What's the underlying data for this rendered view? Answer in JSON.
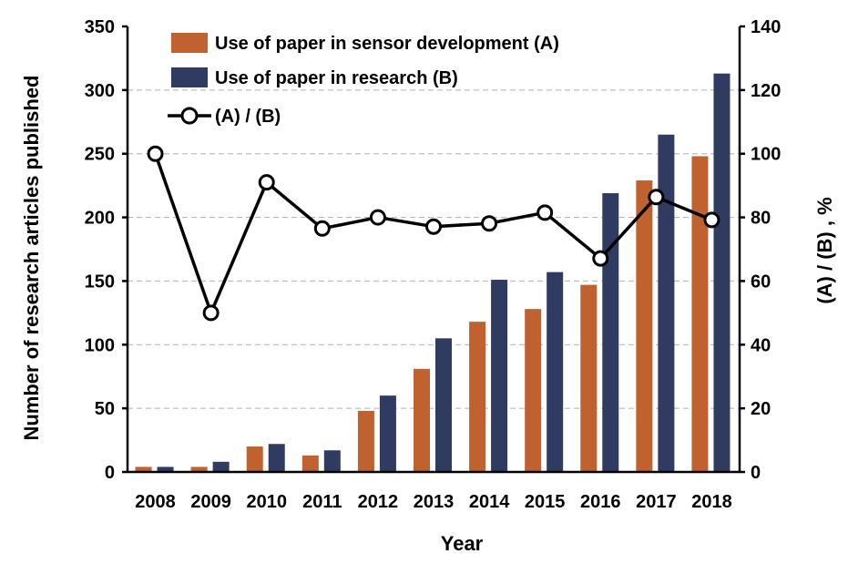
{
  "chart_data": {
    "type": "bar",
    "title": "",
    "xlabel": "Year",
    "ylabel": "Number of research articles published",
    "y2label": "(A) / (B) , %",
    "categories": [
      "2008",
      "2009",
      "2010",
      "2011",
      "2012",
      "2013",
      "2014",
      "2015",
      "2016",
      "2017",
      "2018"
    ],
    "ylim": [
      0,
      350
    ],
    "y2lim": [
      0,
      140
    ],
    "yticks": [
      0,
      50,
      100,
      150,
      200,
      250,
      300,
      350
    ],
    "y2ticks": [
      0,
      20,
      40,
      60,
      80,
      100,
      120,
      140
    ],
    "grid": true,
    "legend_position": "top-left",
    "series": [
      {
        "name": "Use of paper in sensor development (A)",
        "type": "bar",
        "axis": "left",
        "color": "#C0622F",
        "values": [
          4,
          4,
          20,
          13,
          48,
          81,
          118,
          128,
          147,
          229,
          248
        ]
      },
      {
        "name": "Use of paper in research (B)",
        "type": "bar",
        "axis": "left",
        "color": "#303B61",
        "values": [
          4,
          8,
          22,
          17,
          60,
          105,
          151,
          157,
          219,
          265,
          313
        ]
      },
      {
        "name": "(A) / (B)",
        "type": "line",
        "axis": "right",
        "color": "#000000",
        "marker": "open-circle",
        "values": [
          100,
          50,
          91,
          76.5,
          80,
          77.1,
          78.1,
          81.5,
          67.1,
          86.4,
          79.2
        ]
      }
    ]
  }
}
